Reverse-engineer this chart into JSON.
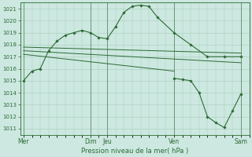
{
  "bg_color": "#cce8e0",
  "grid_color": "#aaccbb",
  "line_color": "#2d6a35",
  "marker_color": "#2d6a35",
  "title": "Pression niveau de la mer( hPa )",
  "ylim": [
    1010.5,
    1021.5
  ],
  "yticks": [
    1011,
    1012,
    1013,
    1014,
    1015,
    1016,
    1017,
    1018,
    1019,
    1020,
    1021
  ],
  "xtick_labels": [
    "Mer",
    "Dim",
    "Jeu",
    "Ven",
    "Sam"
  ],
  "xtick_positions": [
    0,
    4,
    5,
    9,
    13
  ],
  "xlim": [
    -0.2,
    13.5
  ],
  "series_main": {
    "x": [
      0,
      0.5,
      1,
      1.5,
      2,
      2.5,
      3,
      3.5,
      4,
      4.5,
      5,
      5.5,
      6,
      6.5,
      7,
      7.5,
      8,
      9,
      10,
      11,
      12,
      13
    ],
    "y": [
      1015.0,
      1015.8,
      1016.0,
      1017.5,
      1018.3,
      1018.8,
      1019.0,
      1019.2,
      1019.0,
      1018.6,
      1018.5,
      1019.5,
      1020.7,
      1021.2,
      1021.3,
      1021.2,
      1020.3,
      1019.0,
      1018.0,
      1017.0,
      1017.0,
      1017.0
    ]
  },
  "series_flat1": {
    "x": [
      0,
      13
    ],
    "y": [
      1017.8,
      1017.3
    ]
  },
  "series_flat2": {
    "x": [
      0,
      13
    ],
    "y": [
      1017.5,
      1016.5
    ]
  },
  "series_flat3": {
    "x": [
      0,
      9
    ],
    "y": [
      1017.2,
      1015.8
    ]
  },
  "series_drop": {
    "x": [
      9,
      9.5,
      10,
      10.5,
      11,
      11.5,
      12,
      12.5,
      13
    ],
    "y": [
      1015.2,
      1015.1,
      1015.0,
      1014.0,
      1012.0,
      1011.5,
      1011.1,
      1012.5,
      1013.9
    ]
  },
  "vline_positions": [
    0,
    4,
    5,
    9,
    13
  ],
  "figsize": [
    3.2,
    2.0
  ],
  "dpi": 100
}
